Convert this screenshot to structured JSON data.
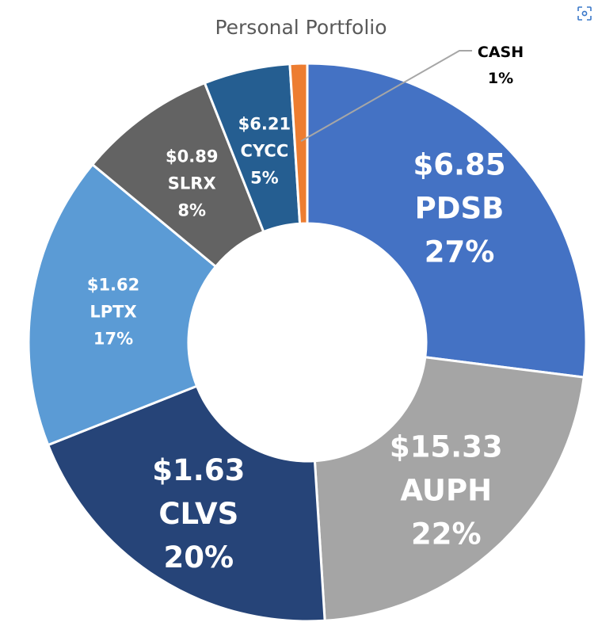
{
  "chart_data": {
    "type": "pie",
    "variant": "doughnut",
    "title": "Personal Portfolio",
    "slices": [
      {
        "ticker": "PDSB",
        "price": "$6.85",
        "percent": 27,
        "label_pct": "27%",
        "color": "#4472C4",
        "label_size": "large"
      },
      {
        "ticker": "AUPH",
        "price": "$15.33",
        "percent": 22,
        "label_pct": "22%",
        "color": "#A5A5A5",
        "label_size": "large"
      },
      {
        "ticker": "CLVS",
        "price": "$1.63",
        "percent": 20,
        "label_pct": "20%",
        "color": "#264478",
        "label_size": "large"
      },
      {
        "ticker": "LPTX",
        "price": "$1.62",
        "percent": 17,
        "label_pct": "17%",
        "color": "#5B9BD5",
        "label_size": "small"
      },
      {
        "ticker": "SLRX",
        "price": "$0.89",
        "percent": 8,
        "label_pct": "8%",
        "color": "#636363",
        "label_size": "small"
      },
      {
        "ticker": "CYCC",
        "price": "$6.21",
        "percent": 5,
        "label_pct": "5%",
        "color": "#255E91",
        "label_size": "small"
      },
      {
        "ticker": "CASH",
        "price": "",
        "percent": 1,
        "label_pct": "1%",
        "color": "#ED7D31",
        "label_size": "callout"
      }
    ]
  },
  "icons": {
    "corner": "focus-scan-icon"
  }
}
